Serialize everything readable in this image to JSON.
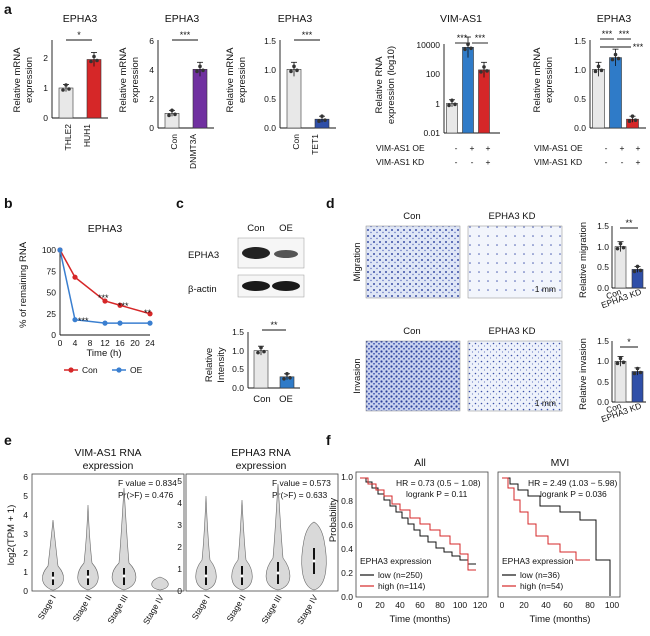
{
  "panels": {
    "a": {
      "label": "a"
    },
    "b": {
      "label": "b"
    },
    "c": {
      "label": "c"
    },
    "d": {
      "label": "d"
    },
    "e": {
      "label": "e"
    },
    "f": {
      "label": "f"
    }
  },
  "a1": {
    "title": "EPHA3",
    "ylabel": [
      "Relative mRNA",
      "expression"
    ],
    "yticks": [
      "0",
      "1",
      "2"
    ],
    "sig": "*"
  },
  "a2": {
    "title": "EPHA3",
    "ylabel": [
      "Relative mRNA",
      "expression"
    ],
    "yticks": [
      "0",
      "2",
      "4",
      "6"
    ],
    "sig": "***"
  },
  "a3": {
    "title": "EPHA3",
    "ylabel": [
      "Relative mRNA",
      "expression"
    ],
    "yticks": [
      "0.0",
      "0.5",
      "1.0",
      "1.5"
    ],
    "sig": "***"
  },
  "a4": {
    "title": "VIM-AS1",
    "ylabel": [
      "Relative RNA",
      "expression (log10)"
    ],
    "yticks": [
      "0.01",
      "1",
      "100",
      "10000"
    ],
    "sig1": "***",
    "sig2": "***",
    "oe_label": "VIM-AS1 OE",
    "kd_label": "VIM-AS1 KD",
    "oe_row": [
      "-",
      "+",
      "+"
    ],
    "kd_row": [
      "-",
      "-",
      "+"
    ]
  },
  "a5": {
    "title": "EPHA3",
    "ylabel": [
      "Relative mRNA",
      "expression"
    ],
    "yticks": [
      "0.0",
      "0.5",
      "1.0",
      "1.5"
    ],
    "sig1": "***",
    "sig2": "***",
    "sig3": "***",
    "oe_label": "VIM-AS1 OE",
    "kd_label": "VIM-AS1 KD",
    "oe_row": [
      "-",
      "+",
      "+"
    ],
    "kd_row": [
      "-",
      "-",
      "+"
    ]
  },
  "b": {
    "title": "EPHA3",
    "ylabel": "% of remaining RNA",
    "xlabel": "Time (h)",
    "yticks": [
      "0",
      "25",
      "50",
      "75",
      "100"
    ],
    "xticks": [
      "0",
      "4",
      "8",
      "12",
      "16",
      "20",
      "24"
    ],
    "sigs": [
      "***",
      "***",
      "***",
      "**"
    ],
    "legend": [
      "Con",
      "OE"
    ]
  },
  "c": {
    "wb_cols": [
      "Con",
      "OE"
    ],
    "wb_rows": [
      "EPHA3",
      "β-actin"
    ],
    "ylabel": [
      "Relative",
      "Intensity"
    ],
    "yticks": [
      "0.0",
      "0.5",
      "1.0",
      "1.5"
    ],
    "sig": "**"
  },
  "d": {
    "cols": [
      "Con",
      "EPHA3 KD"
    ],
    "rows": [
      "Migration",
      "Invasion"
    ],
    "scale": "1 mm",
    "ylabel1": "Relative migration",
    "ylabel2": "Relative invasion",
    "yticks": [
      "0.0",
      "0.5",
      "1.0",
      "1.5"
    ],
    "sig1": "**",
    "sig2": "*",
    "xcats": [
      "Con",
      "EPHA3 KD"
    ]
  },
  "e": {
    "left": {
      "title": [
        "VIM-AS1 RNA",
        "expression"
      ],
      "yticks": [
        "0",
        "1",
        "2",
        "3",
        "4",
        "5",
        "6"
      ],
      "stat1": "F value = 0.834",
      "stat2": "Pr(>F) = 0.476"
    },
    "right": {
      "title": [
        "EPHA3 RNA",
        "expression"
      ],
      "yticks": [
        "0",
        "1",
        "2",
        "3",
        "4",
        "5"
      ],
      "stat1": "F value = 0.573",
      "stat2": "Pr(>F) = 0.633"
    },
    "ylabel": "log2(TPM + 1)",
    "stages": [
      "Stage I",
      "Stage II",
      "Stage III",
      "Stage IV"
    ]
  },
  "f": {
    "left": {
      "title": "All",
      "hr": "HR = 0.73 (0.5 − 1.08)",
      "p": "logrank P = 0.11",
      "xticks": [
        "0",
        "20",
        "40",
        "60",
        "80",
        "100",
        "120"
      ],
      "low": "low (n=250)",
      "high": "high (n=114)"
    },
    "right": {
      "title": "MVI",
      "hr": "HR = 2.49 (1.03 − 5.98)",
      "p": "logrank P = 0.036",
      "xticks": [
        "0",
        "20",
        "40",
        "60",
        "80",
        "100"
      ],
      "low": "low (n=36)",
      "high": "high (n=54)"
    },
    "ylabel": "Probability",
    "xlabel": "Time (months)",
    "legend_title": "EPHA3 expression",
    "yticks": [
      "0.0",
      "0.2",
      "0.4",
      "0.6",
      "0.8",
      "1.0"
    ]
  },
  "chart_data": [
    {
      "type": "bar",
      "panel": "a1",
      "categories": [
        "THLE2",
        "HUH1"
      ],
      "values": [
        1.0,
        1.95
      ],
      "ylim": [
        0,
        2.6
      ],
      "colors": [
        "#e8e8e8",
        "#d62728"
      ]
    },
    {
      "type": "bar",
      "panel": "a2",
      "categories": [
        "Con",
        "DNMT3A"
      ],
      "values": [
        1.0,
        4.0
      ],
      "ylim": [
        0,
        6
      ],
      "colors": [
        "#e8e8e8",
        "#7030a0"
      ]
    },
    {
      "type": "bar",
      "panel": "a3",
      "categories": [
        "Con",
        "TET1"
      ],
      "values": [
        1.0,
        0.15
      ],
      "ylim": [
        0,
        1.5
      ],
      "colors": [
        "#e8e8e8",
        "#2f4fa8"
      ]
    },
    {
      "type": "bar",
      "panel": "a4",
      "scale": "log",
      "values": [
        1,
        6000,
        180
      ],
      "ylim": [
        0.01,
        10000
      ],
      "colors": [
        "#e8e8e8",
        "#2f7bc8",
        "#d62728"
      ]
    },
    {
      "type": "bar",
      "panel": "a5",
      "values": [
        1.0,
        1.2,
        0.15
      ],
      "ylim": [
        0,
        1.5
      ],
      "colors": [
        "#e8e8e8",
        "#2f7bc8",
        "#d62728"
      ]
    },
    {
      "type": "line",
      "panel": "b",
      "x": [
        0,
        4,
        12,
        16,
        24
      ],
      "series": [
        {
          "name": "Con",
          "values": [
            100,
            68,
            40,
            35,
            25
          ],
          "color": "#d62728"
        },
        {
          "name": "OE",
          "values": [
            100,
            18,
            14,
            14,
            14
          ],
          "color": "#3a7fd0"
        }
      ],
      "ylim": [
        0,
        100
      ]
    },
    {
      "type": "bar",
      "panel": "c",
      "categories": [
        "Con",
        "OE"
      ],
      "values": [
        1.0,
        0.3
      ],
      "ylim": [
        0,
        1.5
      ],
      "colors": [
        "#e8e8e8",
        "#2f7bc8"
      ]
    },
    {
      "type": "bar",
      "panel": "d-migration",
      "categories": [
        "Con",
        "EPHA3 KD"
      ],
      "values": [
        1.0,
        0.45
      ],
      "ylim": [
        0,
        1.5
      ],
      "colors": [
        "#e8e8e8",
        "#2f4fa8"
      ]
    },
    {
      "type": "bar",
      "panel": "d-invasion",
      "categories": [
        "Con",
        "EPHA3 KD"
      ],
      "values": [
        1.0,
        0.75
      ],
      "ylim": [
        0,
        1.5
      ],
      "colors": [
        "#e8e8e8",
        "#2f4fa8"
      ]
    }
  ]
}
